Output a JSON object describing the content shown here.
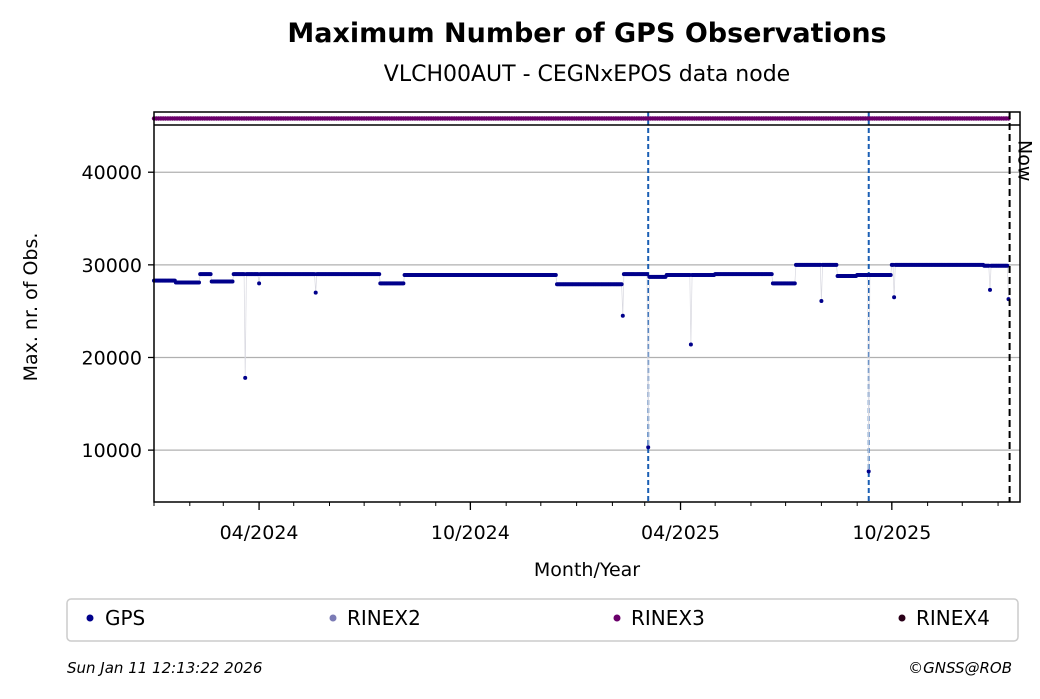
{
  "chart_data": {
    "type": "scatter",
    "title": "Maximum Number of GPS Observations",
    "subtitle": "VLCH00AUT - CEGNxEPOS data node",
    "xlabel": "Month/Year",
    "ylabel": "Max. nr. of Obs.",
    "x_tick_labels": [
      "04/2024",
      "10/2024",
      "04/2025",
      "10/2025"
    ],
    "x_tick_dates": [
      "2024-04-01",
      "2024-10-01",
      "2025-04-01",
      "2025-10-01"
    ],
    "xlim": [
      "2024-01-01",
      "2026-01-20"
    ],
    "y_ticks": [
      10000,
      20000,
      30000,
      40000
    ],
    "ylim": [
      4400,
      46500
    ],
    "grid": "horizontal",
    "now_label": "Now",
    "now_date": "2026-01-11",
    "event_lines": [
      "2025-03-04",
      "2025-09-11"
    ],
    "legend_position": "below",
    "series": [
      {
        "name": "GPS",
        "color": "#00008b",
        "segments": [
          {
            "from": "2024-01-01",
            "to": "2024-01-20",
            "value": 28300
          },
          {
            "from": "2024-01-20",
            "to": "2024-02-10",
            "value": 28100
          },
          {
            "from": "2024-02-10",
            "to": "2024-02-20",
            "value": 29000
          },
          {
            "from": "2024-02-20",
            "to": "2024-03-10",
            "value": 28200
          },
          {
            "from": "2024-03-10",
            "to": "2024-07-15",
            "value": 29000
          },
          {
            "from": "2024-07-15",
            "to": "2024-08-05",
            "value": 28000
          },
          {
            "from": "2024-08-05",
            "to": "2024-12-15",
            "value": 28900
          },
          {
            "from": "2024-12-15",
            "to": "2025-02-10",
            "value": 27900
          },
          {
            "from": "2025-02-10",
            "to": "2025-03-05",
            "value": 29000
          },
          {
            "from": "2025-03-05",
            "to": "2025-03-20",
            "value": 28700
          },
          {
            "from": "2025-03-20",
            "to": "2025-05-01",
            "value": 28900
          },
          {
            "from": "2025-05-01",
            "to": "2025-06-20",
            "value": 29000
          },
          {
            "from": "2025-06-20",
            "to": "2025-07-10",
            "value": 28000
          },
          {
            "from": "2025-07-10",
            "to": "2025-08-15",
            "value": 30000
          },
          {
            "from": "2025-08-15",
            "to": "2025-09-01",
            "value": 28800
          },
          {
            "from": "2025-09-01",
            "to": "2025-10-01",
            "value": 28900
          },
          {
            "from": "2025-10-01",
            "to": "2025-12-20",
            "value": 30000
          },
          {
            "from": "2025-12-20",
            "to": "2026-01-11",
            "value": 29900
          }
        ],
        "outliers": [
          {
            "x": "2024-03-20",
            "y": 17800
          },
          {
            "x": "2024-04-01",
            "y": 28000
          },
          {
            "x": "2024-05-20",
            "y": 27000
          },
          {
            "x": "2025-02-10",
            "y": 24500
          },
          {
            "x": "2025-03-04",
            "y": 10300
          },
          {
            "x": "2025-04-10",
            "y": 21400
          },
          {
            "x": "2025-08-01",
            "y": 26100
          },
          {
            "x": "2025-09-11",
            "y": 7700
          },
          {
            "x": "2025-10-03",
            "y": 26500
          },
          {
            "x": "2025-12-25",
            "y": 27300
          },
          {
            "x": "2026-01-10",
            "y": 26300
          }
        ]
      },
      {
        "name": "RINEX2",
        "color": "#7b7bb5",
        "value": null
      },
      {
        "name": "RINEX3",
        "color": "#6a006a",
        "from": "2024-01-01",
        "to": "2026-01-11",
        "value": 47300
      },
      {
        "name": "RINEX4",
        "color": "#2a0018",
        "value": null
      }
    ]
  },
  "footer": {
    "timestamp": "Sun Jan 11 12:13:22 2026",
    "credit": "©GNSS@ROB"
  }
}
